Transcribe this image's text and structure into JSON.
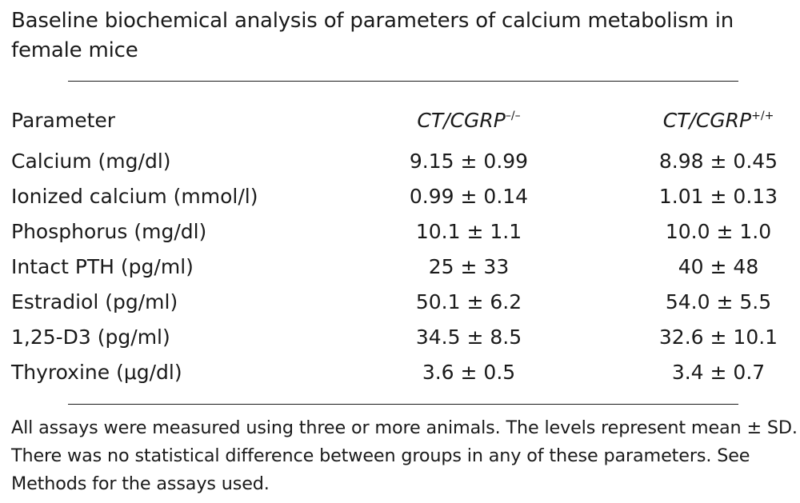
{
  "title": "Baseline biochemical analysis of parameters of calcium metabolism in female mice",
  "header": {
    "parameter": "Parameter",
    "group_ko_label": "CT/CGRP",
    "group_ko_sup": "–/–",
    "group_wt_label": "CT/CGRP",
    "group_wt_sup": "+/+"
  },
  "rows": [
    {
      "parameter": "Calcium (mg/dl)",
      "ko": "9.15 ± 0.99",
      "wt": "8.98 ± 0.45"
    },
    {
      "parameter": "Ionized calcium (mmol/l)",
      "ko": "0.99 ± 0.14",
      "wt": "1.01 ± 0.13"
    },
    {
      "parameter": "Phosphorus (mg/dl)",
      "ko": "10.1 ± 1.1",
      "wt": "10.0 ± 1.0"
    },
    {
      "parameter": "Intact PTH (pg/ml)",
      "ko": "25 ± 33",
      "wt": "40 ± 48"
    },
    {
      "parameter": "Estradiol (pg/ml)",
      "ko": "50.1 ± 6.2",
      "wt": "54.0 ± 5.5"
    },
    {
      "parameter": "1,25-D3 (pg/ml)",
      "ko": "34.5 ± 8.5",
      "wt": "32.6 ± 10.1"
    },
    {
      "parameter": "Thyroxine (μg/dl)",
      "ko": "3.6 ± 0.5",
      "wt": "3.4 ± 0.7"
    }
  ],
  "footnote": "All assays were measured using three or more animals. The levels represent mean ± SD. There was no statistical difference between groups in any of these parameters. See Methods for the assays used."
}
